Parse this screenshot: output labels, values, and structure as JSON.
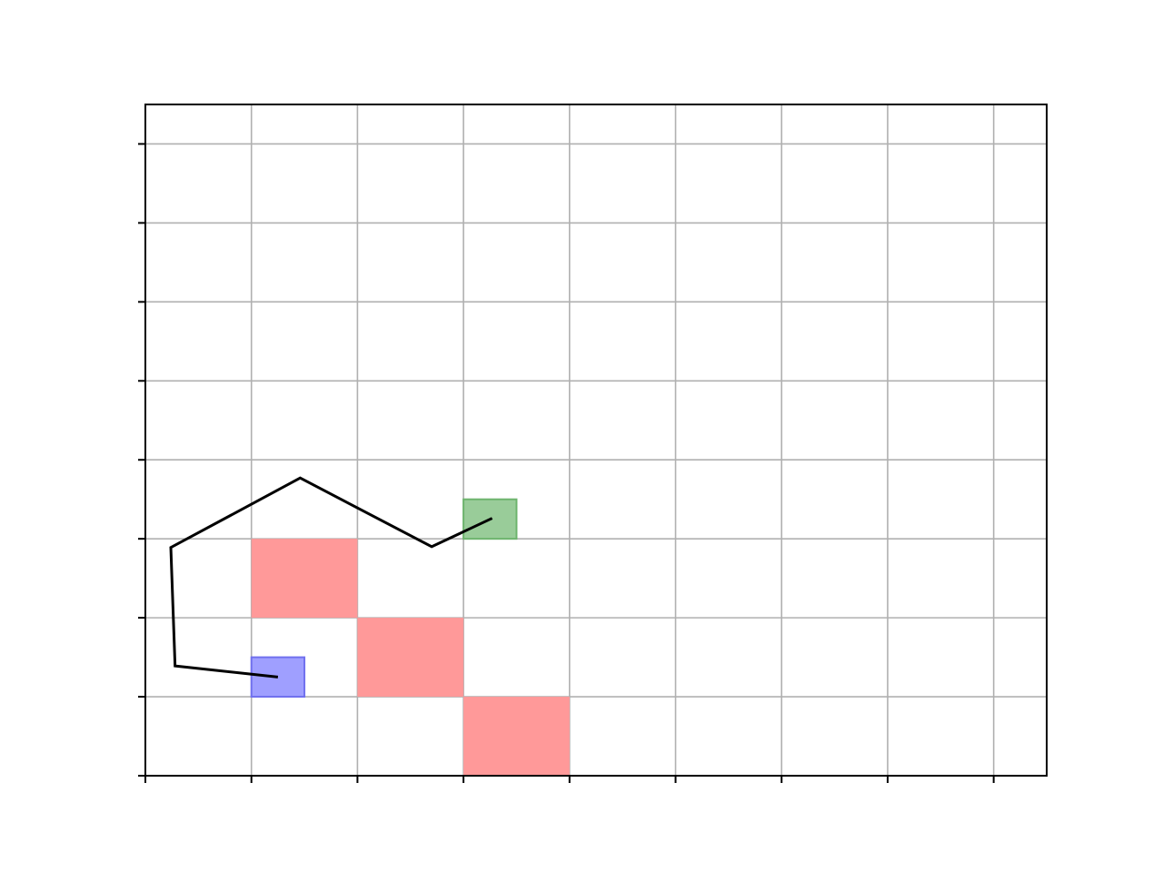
{
  "chart_data": {
    "type": "scatter",
    "title": "",
    "xlabel": "",
    "ylabel": "",
    "xlim": [
      0,
      8.5
    ],
    "ylim": [
      0,
      8.5
    ],
    "xticks": [
      0,
      1,
      2,
      3,
      4,
      5,
      6,
      7,
      8
    ],
    "yticks": [
      0,
      1,
      2,
      3,
      4,
      5,
      6,
      7,
      8
    ],
    "tick_labels_visible": false,
    "grid": true,
    "colors": {
      "obstacle": "#ff9999",
      "start": "#9f9fff",
      "goal": "#99cc99",
      "path": "#000000",
      "grid": "#b0b0b0",
      "axis": "#000000"
    },
    "obstacles": [
      {
        "x": 1,
        "y": 2,
        "w": 1,
        "h": 1
      },
      {
        "x": 2,
        "y": 1,
        "w": 1,
        "h": 1
      },
      {
        "x": 3,
        "y": 0,
        "w": 1,
        "h": 1
      }
    ],
    "start": {
      "x": 1,
      "y": 1,
      "w": 0.5,
      "h": 0.5
    },
    "goal": {
      "x": 3,
      "y": 3,
      "w": 0.5,
      "h": 0.5
    },
    "path": {
      "x": [
        1.25,
        0.28,
        0.24,
        1.46,
        2.7,
        3.27
      ],
      "y": [
        1.25,
        1.39,
        2.89,
        3.77,
        2.9,
        3.26
      ]
    }
  }
}
